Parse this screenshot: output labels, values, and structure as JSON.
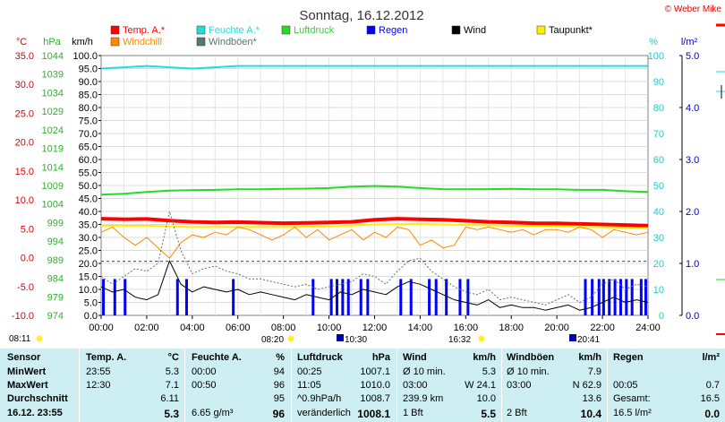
{
  "header": {
    "title": "Sonntag, 16.12.2012",
    "copyright": "© Weber Mike"
  },
  "legend": [
    {
      "label": "Temp. A.*",
      "color": "#ff0000"
    },
    {
      "label": "Feuchte A.*",
      "color": "#22dddd"
    },
    {
      "label": "Luftdruck",
      "color": "#22dd22"
    },
    {
      "label": "Regen",
      "color": "#0000ff"
    },
    {
      "label": "Wind",
      "color": "#000000"
    },
    {
      "label": "Taupunkt*",
      "color": "#ffee00"
    },
    {
      "label": "Windchill",
      "color": "#ff8800"
    },
    {
      "label": "Windböen*",
      "color": "#557777"
    }
  ],
  "axes": {
    "temp_unit": "°C",
    "pressure_unit": "hPa",
    "wind_unit": "km/h",
    "humidity_unit": "%",
    "rain_unit": "l/m²",
    "temp_ticks": [
      "35.0",
      "30.0",
      "25.0",
      "20.0",
      "15.0",
      "10.0",
      "5.0",
      "0.0",
      "-5.0",
      "-10.0"
    ],
    "pressure_ticks": [
      "1044",
      "1039",
      "1034",
      "1029",
      "1024",
      "1019",
      "1014",
      "1009",
      "1004",
      "999",
      "994",
      "989",
      "984",
      "979",
      "974"
    ],
    "wind_ticks": [
      "100.0",
      "95.0",
      "90.0",
      "85.0",
      "80.0",
      "75.0",
      "70.0",
      "65.0",
      "60.0",
      "55.0",
      "50.0",
      "45.0",
      "40.0",
      "35.0",
      "30.0",
      "25.0",
      "20.0",
      "15.0",
      "10.0",
      "5.0",
      "0.0"
    ],
    "humidity_ticks": [
      "100",
      "90",
      "80",
      "70",
      "60",
      "50",
      "40",
      "30",
      "20",
      "10",
      "0"
    ],
    "rain_ticks": [
      "5.0",
      "4.0",
      "3.0",
      "2.0",
      "1.0",
      "0.0"
    ],
    "time_ticks": [
      "00:00",
      "02:00",
      "04:00",
      "06:00",
      "08:00",
      "10:00",
      "12:00",
      "14:00",
      "16:00",
      "18:00",
      "20:00",
      "22:00",
      "24:00"
    ]
  },
  "sun_times": {
    "sunrise": "08:11",
    "sunrise2": "08:20",
    "moonrise": "10:30",
    "sunset": "16:32",
    "moonset": "20:41"
  },
  "chart_data": {
    "type": "line",
    "x_label": "",
    "x_range": [
      0,
      24
    ],
    "wind_range": [
      0,
      100
    ],
    "humidity_range": [
      0,
      100
    ],
    "rain_range": [
      0,
      5
    ],
    "series": [
      {
        "name": "Temp. A.*",
        "axis": "wind",
        "color": "#ff0000",
        "width": 4,
        "points": [
          [
            0,
            37.2
          ],
          [
            1,
            37.0
          ],
          [
            2,
            37.1
          ],
          [
            3,
            36.5
          ],
          [
            4,
            36.0
          ],
          [
            5,
            35.8
          ],
          [
            6,
            35.9
          ],
          [
            7,
            35.7
          ],
          [
            8,
            35.5
          ],
          [
            9,
            35.6
          ],
          [
            10,
            35.8
          ],
          [
            11,
            36.0
          ],
          [
            12,
            36.8
          ],
          [
            13,
            37.2
          ],
          [
            14,
            37.0
          ],
          [
            15,
            36.8
          ],
          [
            16,
            36.4
          ],
          [
            17,
            36.0
          ],
          [
            18,
            35.8
          ],
          [
            19,
            35.5
          ],
          [
            20,
            35.4
          ],
          [
            21,
            35.2
          ],
          [
            22,
            35.0
          ],
          [
            23,
            34.8
          ],
          [
            24,
            34.5
          ]
        ]
      },
      {
        "name": "Taupunkt*",
        "axis": "wind",
        "color": "#ffee00",
        "width": 2,
        "points": [
          [
            0,
            34.5
          ],
          [
            2,
            34.5
          ],
          [
            4,
            34.0
          ],
          [
            6,
            34.0
          ],
          [
            8,
            34.0
          ],
          [
            10,
            34.2
          ],
          [
            12,
            35.0
          ],
          [
            14,
            35.2
          ],
          [
            16,
            34.8
          ],
          [
            18,
            34.5
          ],
          [
            20,
            34.2
          ],
          [
            22,
            34.0
          ],
          [
            24,
            33.5
          ]
        ]
      },
      {
        "name": "Feuchte A.*",
        "axis": "humidity",
        "color": "#22dddd",
        "width": 2,
        "points": [
          [
            0,
            95
          ],
          [
            1,
            95.5
          ],
          [
            2,
            96
          ],
          [
            3,
            95.5
          ],
          [
            4,
            95
          ],
          [
            5,
            95.5
          ],
          [
            6,
            96
          ],
          [
            7,
            96
          ],
          [
            8,
            96
          ],
          [
            9,
            96
          ],
          [
            10,
            96
          ],
          [
            11,
            96
          ],
          [
            12,
            96
          ],
          [
            13,
            96
          ],
          [
            14,
            96
          ],
          [
            15,
            96
          ],
          [
            16,
            96
          ],
          [
            17,
            96
          ],
          [
            18,
            96
          ],
          [
            19,
            96
          ],
          [
            20,
            96
          ],
          [
            21,
            96
          ],
          [
            22,
            96
          ],
          [
            23,
            96
          ],
          [
            24,
            96
          ]
        ]
      },
      {
        "name": "Luftdruck",
        "axis": "wind",
        "color": "#22dd22",
        "width": 2,
        "points": [
          [
            0,
            46.5
          ],
          [
            1,
            46.8
          ],
          [
            2,
            47.5
          ],
          [
            3,
            48.0
          ],
          [
            4,
            48.2
          ],
          [
            5,
            48.3
          ],
          [
            6,
            48.5
          ],
          [
            7,
            48.5
          ],
          [
            8,
            48.7
          ],
          [
            9,
            48.8
          ],
          [
            10,
            49.0
          ],
          [
            11,
            49.5
          ],
          [
            12,
            49.8
          ],
          [
            13,
            49.5
          ],
          [
            14,
            49.0
          ],
          [
            15,
            48.6
          ],
          [
            16,
            48.5
          ],
          [
            17,
            48.6
          ],
          [
            18,
            48.7
          ],
          [
            19,
            48.5
          ],
          [
            20,
            48.5
          ],
          [
            21,
            48.3
          ],
          [
            22,
            48.3
          ],
          [
            23,
            47.8
          ],
          [
            24,
            47.5
          ]
        ]
      },
      {
        "name": "Windchill",
        "axis": "wind",
        "color": "#ff8800",
        "width": 1,
        "points": [
          [
            0,
            32
          ],
          [
            0.5,
            34
          ],
          [
            1,
            30
          ],
          [
            1.5,
            27
          ],
          [
            2,
            30
          ],
          [
            2.5,
            26
          ],
          [
            3,
            22
          ],
          [
            3.5,
            28
          ],
          [
            4,
            31
          ],
          [
            4.5,
            30
          ],
          [
            5,
            32
          ],
          [
            5.5,
            31
          ],
          [
            6,
            34
          ],
          [
            6.5,
            33
          ],
          [
            7,
            31
          ],
          [
            7.5,
            29
          ],
          [
            8,
            31
          ],
          [
            8.5,
            34
          ],
          [
            9,
            30
          ],
          [
            9.5,
            33
          ],
          [
            10,
            29
          ],
          [
            10.5,
            31
          ],
          [
            11,
            33
          ],
          [
            11.5,
            29
          ],
          [
            12,
            32
          ],
          [
            12.5,
            30
          ],
          [
            13,
            34
          ],
          [
            13.5,
            33
          ],
          [
            14,
            27
          ],
          [
            14.5,
            29
          ],
          [
            15,
            26
          ],
          [
            15.5,
            27
          ],
          [
            16,
            34
          ],
          [
            16.5,
            33
          ],
          [
            17,
            34
          ],
          [
            17.5,
            33
          ],
          [
            18,
            32
          ],
          [
            18.5,
            33
          ],
          [
            19,
            31
          ],
          [
            19.5,
            33
          ],
          [
            20,
            33
          ],
          [
            20.5,
            32
          ],
          [
            21,
            34
          ],
          [
            21.5,
            33
          ],
          [
            22,
            30
          ],
          [
            22.5,
            33
          ],
          [
            23,
            32
          ],
          [
            23.5,
            31
          ],
          [
            24,
            32
          ]
        ]
      },
      {
        "name": "Windböen*",
        "axis": "wind",
        "color": "#557777",
        "width": 1,
        "dash": "2,2",
        "points": [
          [
            0,
            15
          ],
          [
            0.5,
            12
          ],
          [
            1,
            15
          ],
          [
            1.5,
            18
          ],
          [
            2,
            17
          ],
          [
            2.5,
            20
          ],
          [
            3,
            40
          ],
          [
            3.5,
            25
          ],
          [
            4,
            16
          ],
          [
            4.5,
            18
          ],
          [
            5,
            19
          ],
          [
            5.5,
            17
          ],
          [
            6,
            16
          ],
          [
            6.5,
            14
          ],
          [
            7,
            14
          ],
          [
            7.5,
            13
          ],
          [
            8,
            12
          ],
          [
            8.5,
            11
          ],
          [
            9,
            12
          ],
          [
            9.5,
            10
          ],
          [
            10,
            11
          ],
          [
            10.5,
            12
          ],
          [
            11,
            13
          ],
          [
            11.5,
            16
          ],
          [
            12,
            15
          ],
          [
            12.5,
            12
          ],
          [
            13,
            17
          ],
          [
            13.5,
            21
          ],
          [
            14,
            22
          ],
          [
            14.5,
            17
          ],
          [
            15,
            14
          ],
          [
            15.5,
            11
          ],
          [
            16,
            9
          ],
          [
            16.5,
            8
          ],
          [
            17,
            10
          ],
          [
            17.5,
            6
          ],
          [
            18,
            7
          ],
          [
            18.5,
            6
          ],
          [
            19,
            5
          ],
          [
            19.5,
            4
          ],
          [
            20,
            6
          ],
          [
            20.5,
            8
          ],
          [
            21,
            5
          ],
          [
            21.5,
            7
          ],
          [
            22,
            12
          ],
          [
            22.5,
            14
          ],
          [
            23,
            10
          ],
          [
            23.5,
            12
          ],
          [
            24,
            11
          ]
        ]
      },
      {
        "name": "Wind",
        "axis": "wind",
        "color": "#000000",
        "width": 1,
        "points": [
          [
            0,
            11
          ],
          [
            0.5,
            9
          ],
          [
            1,
            10
          ],
          [
            1.5,
            7
          ],
          [
            2,
            6
          ],
          [
            2.5,
            8
          ],
          [
            3,
            21
          ],
          [
            3.5,
            12
          ],
          [
            4,
            9
          ],
          [
            4.5,
            11
          ],
          [
            5,
            10
          ],
          [
            5.5,
            9
          ],
          [
            6,
            10
          ],
          [
            6.5,
            8
          ],
          [
            7,
            9
          ],
          [
            7.5,
            8
          ],
          [
            8,
            7
          ],
          [
            8.5,
            6
          ],
          [
            9,
            8
          ],
          [
            9.5,
            7
          ],
          [
            10,
            6
          ],
          [
            10.5,
            9
          ],
          [
            11,
            8
          ],
          [
            11.5,
            10
          ],
          [
            12,
            9
          ],
          [
            12.5,
            8
          ],
          [
            13,
            11
          ],
          [
            13.5,
            13
          ],
          [
            14,
            12
          ],
          [
            14.5,
            10
          ],
          [
            15,
            8
          ],
          [
            15.5,
            6
          ],
          [
            16,
            5
          ],
          [
            16.5,
            4
          ],
          [
            17,
            6
          ],
          [
            17.5,
            3
          ],
          [
            18,
            4
          ],
          [
            18.5,
            3
          ],
          [
            19,
            3
          ],
          [
            19.5,
            2
          ],
          [
            20,
            3
          ],
          [
            20.5,
            4
          ],
          [
            21,
            2
          ],
          [
            21.5,
            3
          ],
          [
            22,
            5
          ],
          [
            22.5,
            7
          ],
          [
            23,
            5
          ],
          [
            23.5,
            6
          ],
          [
            24,
            5
          ]
        ]
      }
    ],
    "rain_events_hours": [
      0.1,
      0.6,
      1.05,
      3.35,
      3.75,
      5.8,
      9.3,
      10.1,
      10.35,
      10.6,
      10.85,
      11.4,
      11.7,
      13.15,
      13.6,
      14.4,
      14.7,
      15.15,
      15.75,
      16.1,
      21.25,
      21.55,
      21.85,
      22.05,
      22.3,
      22.55,
      22.8,
      23.05,
      23.3,
      23.7,
      23.9
    ],
    "rain_bar_height_mm": 0.7,
    "dashed_reference_wind": 20.8
  },
  "stats": {
    "headers": {
      "sensor": "Sensor",
      "temp": "Temp. A.",
      "temp_unit": "°C",
      "hum": "Feuchte A.",
      "hum_unit": "%",
      "press": "Luftdruck",
      "press_unit": "hPa",
      "wind": "Wind",
      "wind_unit": "km/h",
      "gust": "Windböen",
      "gust_unit": "km/h",
      "rain": "Regen",
      "rain_unit": "l/m²"
    },
    "rows": [
      {
        "label": "MinWert",
        "temp_time": "23:55",
        "temp_val": "5.3",
        "hum_time": "00:00",
        "hum_val": "94",
        "press_time": "00:25",
        "press_val": "1007.1",
        "wind_a": "Ø 10 min.",
        "wind_b": "5.3",
        "gust_a": "Ø 10 min.",
        "gust_b": "7.9",
        "rain_a": "",
        "rain_b": ""
      },
      {
        "label": "MaxWert",
        "temp_time": "12:30",
        "temp_val": "7.1",
        "hum_time": "00:50",
        "hum_val": "96",
        "press_time": "11:05",
        "press_val": "1010.0",
        "wind_a": "03:00",
        "wind_b": "W 24.1",
        "gust_a": "03:00",
        "gust_b": "N 62.9",
        "rain_a": "00:05",
        "rain_b": "0.7"
      },
      {
        "label": "Durchschnitt",
        "temp_time": "",
        "temp_val": "6.11",
        "hum_time": "",
        "hum_val": "95",
        "press_time": "^0.9hPa/h",
        "press_val": "1008.7",
        "wind_a": "239.9 km",
        "wind_b": "10.0",
        "gust_a": "",
        "gust_b": "13.6",
        "rain_a": "Gesamt:",
        "rain_b": "16.5"
      },
      {
        "label": "16.12. 23:55",
        "temp_time": "",
        "temp_val": "5.3",
        "hum_time": "6.65 g/m³",
        "hum_val": "96",
        "press_time": "veränderlich",
        "press_val": "1008.1",
        "wind_a": "1 Bft",
        "wind_b": "5.5",
        "gust_a": "2 Bft",
        "gust_b": "10.4",
        "rain_a": "16.5 l/m²",
        "rain_b": "0.0"
      }
    ]
  }
}
